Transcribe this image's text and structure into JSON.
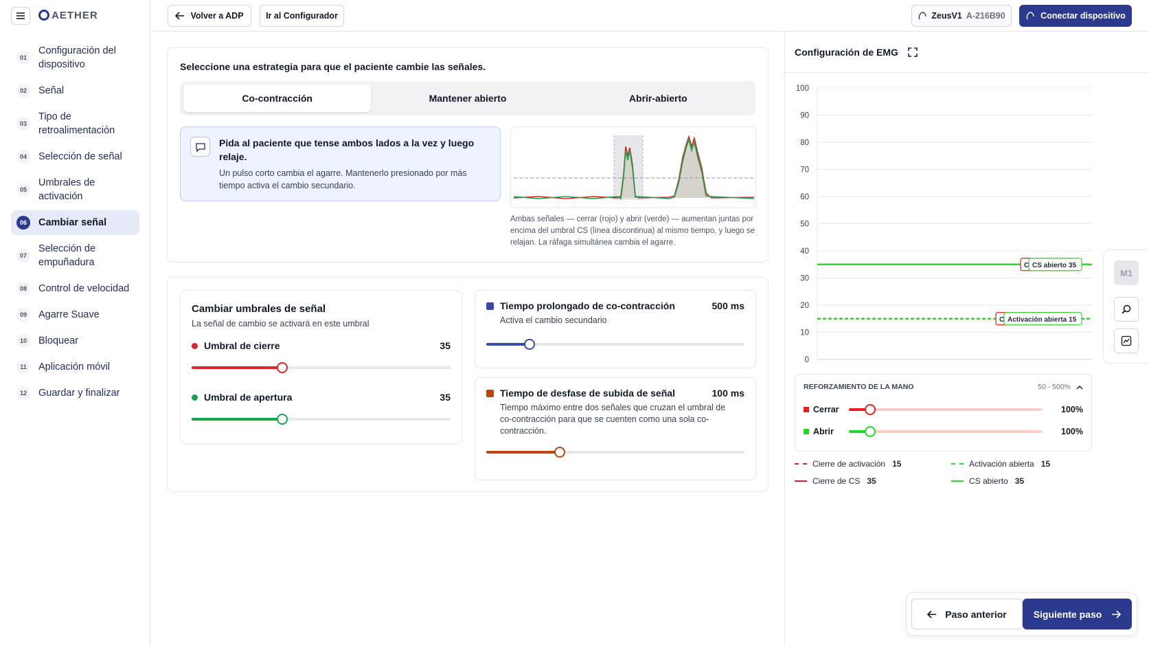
{
  "sidebar": {
    "logo": "AETHER",
    "steps": [
      {
        "number": "01",
        "label": "Configuración del dispositivo"
      },
      {
        "number": "02",
        "label": "Señal"
      },
      {
        "number": "03",
        "label": "Tipo de retroalimentación"
      },
      {
        "number": "04",
        "label": "Selección de señal"
      },
      {
        "number": "05",
        "label": "Umbrales de activación"
      },
      {
        "number": "06",
        "label": "Cambiar señal",
        "active": true
      },
      {
        "number": "07",
        "label": "Selección de empuñadura"
      },
      {
        "number": "08",
        "label": "Control de velocidad"
      },
      {
        "number": "09",
        "label": "Agarre Suave"
      },
      {
        "number": "10",
        "label": "Bloquear"
      },
      {
        "number": "11",
        "label": "Aplicación móvil"
      },
      {
        "number": "12",
        "label": "Guardar y finalizar"
      }
    ]
  },
  "header": {
    "back_button": "Volver a ADP",
    "configurator_button": "Ir al Configurador",
    "device_name": "ZeusV1",
    "device_id": "A-216B90",
    "connect_button": "Conectar dispositivo"
  },
  "strategy": {
    "prompt": "Seleccione una estrategia para que el paciente cambie las señales.",
    "tabs": [
      {
        "label": "Co-contracción",
        "selected": true
      },
      {
        "label": "Mantener abierto"
      },
      {
        "label": "Abrir-abierto"
      }
    ],
    "instruction_title": "Pida al paciente que tense ambos lados a la vez y luego relaje.",
    "instruction_text": "Un pulso corto cambia el agarre. Mantenerlo presionado por más tiempo activa el cambio secundario.",
    "caption": "Ambas señales — cerrar (rojo) y abrir (verde) — aumentan juntas por encima del umbral CS (línea discontinua) al mismo tiempo, y luego se relajan. La ráfaga simultánea cambia el agarre."
  },
  "thresholds": {
    "title": "Cambiar umbrales de señal",
    "subtitle": "La señal de cambio se activará en este umbral",
    "min": 0,
    "max": 100,
    "sliders": [
      {
        "label": "Umbral de cierre",
        "value": 35,
        "color": "#dc2626"
      },
      {
        "label": "Umbral de apertura",
        "value": 35,
        "color": "#16a34a"
      }
    ]
  },
  "timing": [
    {
      "title": "Tiempo prolongado de co-contracción",
      "value": 500,
      "value_label": "500 ms",
      "description": "Activa el cambio secundario",
      "min": 0,
      "max": 3000,
      "color": "#3a4aa8"
    },
    {
      "title": "Tiempo de desfase de subida de señal",
      "value": 100,
      "value_label": "100 ms",
      "description": "Tiempo máximo entre dos señales que cruzan el umbral de co-contracción para que se cuenten como una sola co-contracción.",
      "min": 0,
      "max": 350,
      "color": "#b8480e"
    }
  ],
  "chart_data": {
    "type": "line",
    "title": "Configuración de EMG",
    "ylim": [
      0,
      100
    ],
    "yticks": [
      0,
      10,
      20,
      30,
      40,
      50,
      60,
      70,
      80,
      90,
      100
    ],
    "grid": true,
    "series": [
      {
        "name": "Cierre de activación",
        "value": 15,
        "color": "#e11d1d",
        "dashed": true
      },
      {
        "name": "Activación abierta",
        "value": 15,
        "color": "#2ed82e",
        "dashed": true
      },
      {
        "name": "Cierre de CS",
        "value": 35,
        "color": "#e11d1d",
        "dashed": false
      },
      {
        "name": "CS abierto",
        "value": 35,
        "color": "#2ed82e",
        "dashed": false
      }
    ]
  },
  "reinforcement": {
    "title": "REFORZAMIENTO DE LA MANO",
    "range_label": "50 - 500%",
    "min": 50,
    "max": 500,
    "sliders": [
      {
        "label": "Cerrar",
        "value": 100,
        "value_label": "100%",
        "color": "#ef1c1c"
      },
      {
        "label": "Abrir",
        "value": 100,
        "value_label": "100%",
        "color": "#22d822"
      }
    ]
  },
  "tools": {
    "mode_label": "M1"
  },
  "footer": {
    "back": "Paso anterior",
    "next": "Siguiente paso"
  }
}
